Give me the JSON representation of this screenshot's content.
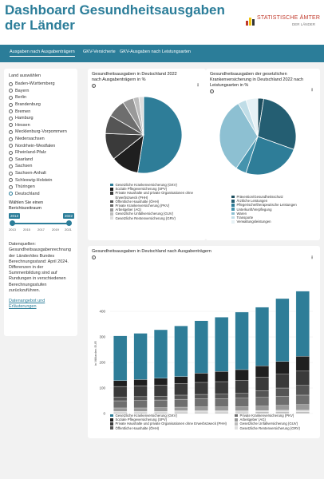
{
  "header": {
    "title": "Dashboard Gesundheitsausgaben der Länder",
    "logo_main": "STATISTISCHE ÄMTER",
    "logo_sub": "DER LÄNDER"
  },
  "tabs": [
    {
      "label": "Ausgaben nach Ausgabenträgern",
      "active": true
    },
    {
      "label": "GKV-Versicherte",
      "active": false
    },
    {
      "label": "GKV-Ausgaben nach Leistungsarten",
      "active": false
    }
  ],
  "sidebar": {
    "land_label": "Land auswählen",
    "laender": [
      "Baden-Württemberg",
      "Bayern",
      "Berlin",
      "Brandenburg",
      "Bremen",
      "Hamburg",
      "Hessen",
      "Mecklenburg-Vorpommern",
      "Niedersachsen",
      "Nordrhein-Westfalen",
      "Rheinland-Pfalz",
      "Saarland",
      "Sachsen",
      "Sachsen-Anhalt",
      "Schleswig-Holstein",
      "Thüringen",
      "Deutschland"
    ],
    "selected_land": "Deutschland",
    "zeitraum_label": "Wählen Sie einen Berichtszeitraum",
    "slider": {
      "from": "2013",
      "to": "2022",
      "ticks": [
        "2013",
        "2015",
        "2017",
        "2019",
        "2021"
      ]
    },
    "datenquellen": "Datenquellen: Gesundheitsausgabenrechnung der Länder/des Bundes Berechnungsstand: April 2024. Differenzen in der Summenbildung sind auf Rundungen in verschiedenen Berechnungsstufen zurückzuführen.",
    "link": "Datenangebot und Erläuterungen"
  },
  "colors": {
    "accent": "#2b7d99",
    "gkv": "#2e7d98",
    "spv": "#1f1f1f",
    "phh": "#3a3a3a",
    "oeh": "#555555",
    "pkv": "#6e6e6e",
    "ag": "#999999",
    "guv": "#bdbdbd",
    "grv": "#dedede"
  },
  "chart_data": [
    {
      "type": "pie",
      "title": "Gesundheitsausgaben in Deutschland 2022 nach Ausgabenträgern in %",
      "labels": [
        "Gesetzliche Krankenversicherung (GKV)",
        "Soziale Pflegeversicherung (SPV)",
        "Private Haushalte und private Organisationen ohne Erwerbszweck (PHH)",
        "Öffentliche Haushalte (ÖHH)",
        "Private Krankenversicherung (PKV)",
        "Arbeitgeber (AG)",
        "Gesetzliche Unfallversicherung (GUV)",
        "Gesetzliche Rentenversicherung (GRV)"
      ],
      "values": [
        52.5,
        11.8,
        11.3,
        7.8,
        7.6,
        4.6,
        2.4,
        2.0
      ],
      "colors": [
        "#2e7d98",
        "#1f1f1f",
        "#3a3a3a",
        "#555555",
        "#6e6e6e",
        "#999999",
        "#bdbdbd",
        "#dedede"
      ]
    },
    {
      "type": "pie",
      "title": "Gesundheitsausgaben der gesetzlichen Krankenversicherung in Deutschland 2022 nach Leistungsarten in %",
      "labels": [
        "Prävention/Gesundheitsschutz",
        "Ärztliche Leistungen",
        "Pflegerische/therapeutische Leistungen",
        "Unterkunft/Verpflegung",
        "Waren",
        "Transporte",
        "Verwaltungsleistungen"
      ],
      "values": [
        2.5,
        28.0,
        24.5,
        4.5,
        32.0,
        3.5,
        5.0
      ],
      "colors": [
        "#1d4e5f",
        "#245e72",
        "#2e7d98",
        "#4593ad",
        "#8dc0d2",
        "#c0dde7",
        "#e6f1f5"
      ]
    },
    {
      "type": "bar",
      "stacked": true,
      "title": "Gesundheitsausgaben in Deutschland nach Ausgabenträgern",
      "ylabel": "in Milliarden EUR",
      "ylim": [
        0,
        500
      ],
      "yticks": [
        0,
        100,
        200,
        300,
        400
      ],
      "categories": [
        "2013",
        "2014",
        "2015",
        "2016",
        "2017",
        "2018",
        "2019",
        "2020",
        "2021",
        "2022"
      ],
      "series": [
        {
          "name": "Gesetzliche Unfallversicherung (GUV)",
          "values": [
            5,
            5,
            5,
            6,
            6,
            6,
            6,
            7,
            7,
            7
          ]
        },
        {
          "name": "Gesetzliche Rentenversicherung (GRV)",
          "values": [
            4,
            4,
            4,
            5,
            5,
            5,
            5,
            5,
            6,
            6
          ]
        },
        {
          "name": "Arbeitgeber (AG)",
          "values": [
            13,
            13,
            14,
            14,
            15,
            15,
            16,
            17,
            19,
            22
          ]
        },
        {
          "name": "Private Krankenversicherung (PKV)",
          "values": [
            28,
            29,
            30,
            31,
            32,
            32,
            33,
            34,
            35,
            37
          ]
        },
        {
          "name": "Öffentliche Haushalte (ÖHH)",
          "values": [
            14,
            15,
            15,
            16,
            17,
            18,
            19,
            27,
            33,
            38
          ]
        },
        {
          "name": "Private Haushalte und private Organisationen ohne Erwerbszweck (PHH)",
          "values": [
            42,
            43,
            44,
            45,
            47,
            49,
            51,
            52,
            54,
            56
          ]
        },
        {
          "name": "Soziale Pflegeversicherung (SPV)",
          "values": [
            23,
            24,
            26,
            28,
            36,
            40,
            42,
            45,
            50,
            58
          ]
        },
        {
          "name": "Gesetzliche Krankenversicherung (GKV)",
          "values": [
            175,
            181,
            190,
            198,
            205,
            212,
            225,
            229,
            246,
            255
          ]
        }
      ]
    }
  ],
  "bar_legend": {
    "left": [
      {
        "key": "gkv",
        "label": "Gesetzliche Krankenversicherung (GKV)"
      },
      {
        "key": "spv",
        "label": "Soziale Pflegeversicherung (SPV)"
      },
      {
        "key": "phh",
        "label": "Private Haushalte und private Organisationen ohne Erwerbszweck (PHH)"
      },
      {
        "key": "oeh",
        "label": "Öffentliche Haushalte (ÖHH)"
      }
    ],
    "right": [
      {
        "key": "pkv",
        "label": "Private Krankenversicherung (PKV)"
      },
      {
        "key": "ag",
        "label": "Arbeitgeber (AG)"
      },
      {
        "key": "guv",
        "label": "Gesetzliche Unfallversicherung (GUV)"
      },
      {
        "key": "grv",
        "label": "Gesetzliche Rentenversicherung (GRV)"
      }
    ]
  }
}
